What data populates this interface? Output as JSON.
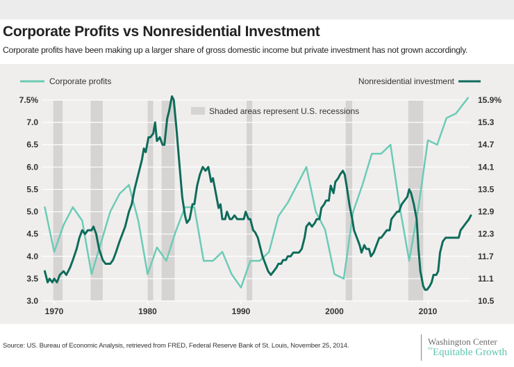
{
  "header": {
    "title": "Corporate Profits vs Nonresidential Investment",
    "subtitle": "Corporate profits have been making up a larger share of gross domestic income but private investment has not grown accordingly."
  },
  "footer": {
    "source": "Source: US. Bureau of Economic Analysis, retrieved from FRED, Federal Reserve Bank of St. Louis, November 25, 2014.",
    "logo_line1": "Washington Center",
    "logo_for": "for",
    "logo_line2": "Equitable Growth"
  },
  "colors": {
    "profits": "#6ccbb5",
    "investment": "#0e6b5a",
    "recession": "#d6d3d3",
    "grid": "#ffffff",
    "background": "#efeeed"
  },
  "chart_data": {
    "type": "line",
    "title": "Corporate Profits vs Nonresidential Investment",
    "xlabel": "",
    "x_ticks": [
      1970,
      1980,
      1990,
      2000,
      2010
    ],
    "xlim": [
      1969.3,
      2014.6
    ],
    "legend": {
      "left_label": "Corporate profits",
      "right_label": "Nonresidential investment",
      "recession_note": "Shaded areas represent U.S. recessions",
      "placement": "top"
    },
    "y_left": {
      "label": "Corporate profits (%)",
      "ylim": [
        3.0,
        7.5
      ],
      "ticks": [
        "3.0",
        "3.5",
        "4.0",
        "4.5",
        "5.0",
        "5.5",
        "6.0",
        "6.5",
        "7.0",
        "7.5%"
      ]
    },
    "y_right": {
      "label": "Nonresidential investment (%)",
      "ylim": [
        10.5,
        15.9
      ],
      "ticks": [
        "10.5",
        "11.1",
        "11.7",
        "12.3",
        "12.9",
        "13.5",
        "14.1",
        "14.7",
        "15.3",
        "15.9%"
      ]
    },
    "grid": true,
    "recessions": [
      [
        1969.9,
        1970.9
      ],
      [
        1973.9,
        1975.2
      ],
      [
        1980.0,
        1980.6
      ],
      [
        1981.5,
        1982.9
      ],
      [
        1990.6,
        1991.2
      ],
      [
        2001.2,
        2001.9
      ],
      [
        2007.9,
        2009.5
      ]
    ],
    "series": [
      {
        "name": "Corporate profits",
        "axis": "left",
        "points": [
          [
            1969,
            5.1
          ],
          [
            1970,
            4.1
          ],
          [
            1971,
            4.7
          ],
          [
            1972,
            5.1
          ],
          [
            1973,
            4.8
          ],
          [
            1974,
            3.6
          ],
          [
            1975,
            4.3
          ],
          [
            1976,
            5.0
          ],
          [
            1977,
            5.4
          ],
          [
            1978,
            5.6
          ],
          [
            1979,
            4.8
          ],
          [
            1980,
            3.6
          ],
          [
            1981,
            4.2
          ],
          [
            1982,
            3.9
          ],
          [
            1983,
            4.55
          ],
          [
            1984,
            5.1
          ],
          [
            1985,
            5.1
          ],
          [
            1986,
            3.9
          ],
          [
            1987,
            3.9
          ],
          [
            1988,
            4.1
          ],
          [
            1989,
            3.6
          ],
          [
            1990,
            3.3
          ],
          [
            1991,
            3.9
          ],
          [
            1992,
            3.9
          ],
          [
            1993,
            4.1
          ],
          [
            1994,
            4.9
          ],
          [
            1995,
            5.2
          ],
          [
            1996,
            5.6
          ],
          [
            1997,
            6.0
          ],
          [
            1998,
            5.0
          ],
          [
            1999,
            4.6
          ],
          [
            2000,
            3.6
          ],
          [
            2001,
            3.5
          ],
          [
            2002,
            5.0
          ],
          [
            2003,
            5.6
          ],
          [
            2004,
            6.3
          ],
          [
            2005,
            6.3
          ],
          [
            2006,
            6.5
          ],
          [
            2007,
            5.1
          ],
          [
            2008,
            3.9
          ],
          [
            2009,
            5.1
          ],
          [
            2010,
            6.6
          ],
          [
            2011,
            6.5
          ],
          [
            2012,
            7.1
          ],
          [
            2013,
            7.2
          ],
          [
            2014.3,
            7.55
          ]
        ]
      },
      {
        "name": "Nonresidential investment",
        "axis": "right",
        "points": [
          [
            1969.0,
            11.3
          ],
          [
            1969.3,
            11.0
          ],
          [
            1969.5,
            11.1
          ],
          [
            1969.8,
            11.0
          ],
          [
            1970.0,
            11.1
          ],
          [
            1970.3,
            11.0
          ],
          [
            1970.6,
            11.2
          ],
          [
            1971.0,
            11.3
          ],
          [
            1971.3,
            11.2
          ],
          [
            1971.7,
            11.4
          ],
          [
            1972.0,
            11.6
          ],
          [
            1972.4,
            11.9
          ],
          [
            1972.7,
            12.2
          ],
          [
            1973.0,
            12.4
          ],
          [
            1973.3,
            12.3
          ],
          [
            1973.6,
            12.4
          ],
          [
            1974.0,
            12.4
          ],
          [
            1974.2,
            12.5
          ],
          [
            1974.5,
            12.3
          ],
          [
            1974.8,
            11.9
          ],
          [
            1975.2,
            11.6
          ],
          [
            1975.5,
            11.5
          ],
          [
            1976.0,
            11.5
          ],
          [
            1976.3,
            11.6
          ],
          [
            1976.6,
            11.8
          ],
          [
            1977.0,
            12.1
          ],
          [
            1977.3,
            12.3
          ],
          [
            1977.6,
            12.5
          ],
          [
            1978.0,
            12.9
          ],
          [
            1978.3,
            13.1
          ],
          [
            1978.6,
            13.5
          ],
          [
            1978.9,
            13.8
          ],
          [
            1979.1,
            14.0
          ],
          [
            1979.4,
            14.3
          ],
          [
            1979.6,
            14.6
          ],
          [
            1979.8,
            14.5
          ],
          [
            1980.1,
            14.9
          ],
          [
            1980.3,
            14.9
          ],
          [
            1980.6,
            15.0
          ],
          [
            1980.8,
            15.3
          ],
          [
            1981.0,
            14.8
          ],
          [
            1981.3,
            14.9
          ],
          [
            1981.6,
            14.7
          ],
          [
            1981.8,
            14.7
          ],
          [
            1982.1,
            15.4
          ],
          [
            1982.3,
            15.6
          ],
          [
            1982.6,
            16.0
          ],
          [
            1982.8,
            15.9
          ],
          [
            1983.1,
            15.1
          ],
          [
            1983.4,
            14.2
          ],
          [
            1983.7,
            13.3
          ],
          [
            1984.0,
            12.8
          ],
          [
            1984.2,
            12.6
          ],
          [
            1984.5,
            12.7
          ],
          [
            1984.8,
            13.1
          ],
          [
            1985.0,
            13.1
          ],
          [
            1985.3,
            13.6
          ],
          [
            1985.6,
            13.9
          ],
          [
            1985.9,
            14.1
          ],
          [
            1986.2,
            14.0
          ],
          [
            1986.5,
            14.1
          ],
          [
            1986.8,
            13.7
          ],
          [
            1987.0,
            13.8
          ],
          [
            1987.3,
            13.4
          ],
          [
            1987.6,
            13.0
          ],
          [
            1987.8,
            13.1
          ],
          [
            1988.0,
            12.7
          ],
          [
            1988.3,
            12.7
          ],
          [
            1988.5,
            12.9
          ],
          [
            1988.8,
            12.7
          ],
          [
            1989.0,
            12.7
          ],
          [
            1989.3,
            12.8
          ],
          [
            1989.6,
            12.7
          ],
          [
            1989.8,
            12.7
          ],
          [
            1990.0,
            12.7
          ],
          [
            1990.3,
            12.7
          ],
          [
            1990.5,
            12.9
          ],
          [
            1990.8,
            12.7
          ],
          [
            1991.0,
            12.7
          ],
          [
            1991.3,
            12.4
          ],
          [
            1991.5,
            12.35
          ],
          [
            1991.8,
            12.2
          ],
          [
            1992.0,
            12.0
          ],
          [
            1992.3,
            11.7
          ],
          [
            1992.6,
            11.5
          ],
          [
            1992.9,
            11.3
          ],
          [
            1993.2,
            11.2
          ],
          [
            1993.5,
            11.3
          ],
          [
            1993.8,
            11.4
          ],
          [
            1994.0,
            11.5
          ],
          [
            1994.3,
            11.5
          ],
          [
            1994.5,
            11.6
          ],
          [
            1994.8,
            11.6
          ],
          [
            1995.0,
            11.7
          ],
          [
            1995.3,
            11.7
          ],
          [
            1995.6,
            11.8
          ],
          [
            1995.9,
            11.8
          ],
          [
            1996.2,
            11.8
          ],
          [
            1996.5,
            11.9
          ],
          [
            1996.8,
            12.2
          ],
          [
            1997.0,
            12.5
          ],
          [
            1997.3,
            12.6
          ],
          [
            1997.6,
            12.5
          ],
          [
            1997.9,
            12.6
          ],
          [
            1998.1,
            12.7
          ],
          [
            1998.4,
            12.7
          ],
          [
            1998.6,
            13.0
          ],
          [
            1998.9,
            13.1
          ],
          [
            1999.1,
            13.2
          ],
          [
            1999.4,
            13.2
          ],
          [
            1999.6,
            13.6
          ],
          [
            1999.9,
            13.4
          ],
          [
            2000.1,
            13.7
          ],
          [
            2000.4,
            13.8
          ],
          [
            2000.6,
            13.9
          ],
          [
            2000.9,
            14.0
          ],
          [
            2001.1,
            13.9
          ],
          [
            2001.3,
            13.6
          ],
          [
            2001.6,
            13.1
          ],
          [
            2001.9,
            12.7
          ],
          [
            2002.1,
            12.4
          ],
          [
            2002.4,
            12.2
          ],
          [
            2002.7,
            12.0
          ],
          [
            2002.9,
            11.8
          ],
          [
            2003.2,
            12.0
          ],
          [
            2003.4,
            11.9
          ],
          [
            2003.7,
            11.9
          ],
          [
            2003.9,
            11.7
          ],
          [
            2004.2,
            11.8
          ],
          [
            2004.5,
            12.0
          ],
          [
            2004.8,
            12.2
          ],
          [
            2005.0,
            12.2
          ],
          [
            2005.3,
            12.3
          ],
          [
            2005.6,
            12.4
          ],
          [
            2005.9,
            12.4
          ],
          [
            2006.1,
            12.7
          ],
          [
            2006.4,
            12.8
          ],
          [
            2006.7,
            12.9
          ],
          [
            2006.9,
            12.9
          ],
          [
            2007.2,
            13.1
          ],
          [
            2007.5,
            13.2
          ],
          [
            2007.8,
            13.3
          ],
          [
            2008.0,
            13.5
          ],
          [
            2008.2,
            13.4
          ],
          [
            2008.5,
            13.1
          ],
          [
            2008.8,
            12.7
          ],
          [
            2009.0,
            11.9
          ],
          [
            2009.2,
            11.3
          ],
          [
            2009.5,
            10.9
          ],
          [
            2009.7,
            10.8
          ],
          [
            2009.9,
            10.8
          ],
          [
            2010.2,
            10.9
          ],
          [
            2010.4,
            11.0
          ],
          [
            2010.6,
            11.2
          ],
          [
            2010.9,
            11.2
          ],
          [
            2011.1,
            11.3
          ],
          [
            2011.3,
            11.8
          ],
          [
            2011.6,
            12.1
          ],
          [
            2011.9,
            12.2
          ],
          [
            2012.4,
            12.2
          ],
          [
            2012.9,
            12.2
          ],
          [
            2013.3,
            12.2
          ],
          [
            2013.5,
            12.4
          ],
          [
            2013.8,
            12.5
          ],
          [
            2014.1,
            12.6
          ],
          [
            2014.4,
            12.7
          ],
          [
            2014.6,
            12.8
          ]
        ]
      }
    ]
  }
}
